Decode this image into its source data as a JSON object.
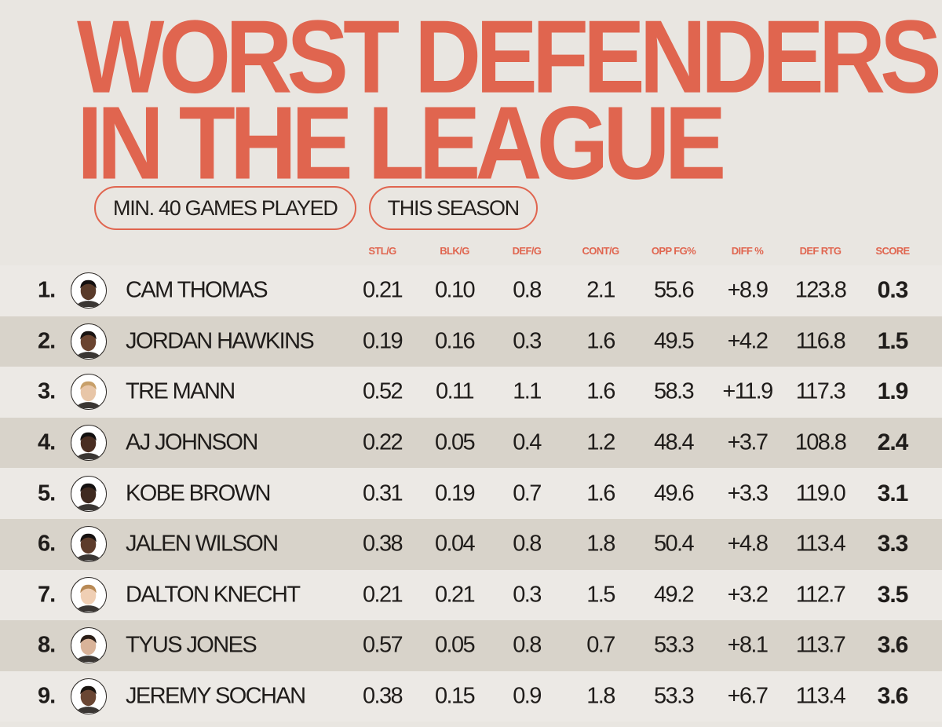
{
  "title": {
    "line1": "WORST DEFENDERS",
    "line2": "IN THE LEAGUE"
  },
  "filters": [
    "MIN. 40 GAMES PLAYED",
    "THIS SEASON"
  ],
  "colors": {
    "accent": "#e0654f",
    "background": "#e9e6e1",
    "row_shade": "#d8d3ca",
    "row_light": "#ece9e5",
    "text": "#1f1c1a"
  },
  "columns": [
    "STL/G",
    "BLK/G",
    "DEF/G",
    "CONT/G",
    "OPP FG%",
    "DIFF %",
    "DEF RTG",
    "SCORE"
  ],
  "rows": [
    {
      "rank": "1.",
      "avatar": "player-headshot-icon",
      "name": "CAM THOMAS",
      "values": [
        "0.21",
        "0.10",
        "0.8",
        "2.1",
        "55.6",
        "+8.9",
        "123.8",
        "0.3"
      ]
    },
    {
      "rank": "2.",
      "avatar": "player-headshot-icon",
      "name": "JORDAN HAWKINS",
      "values": [
        "0.19",
        "0.16",
        "0.3",
        "1.6",
        "49.5",
        "+4.2",
        "116.8",
        "1.5"
      ]
    },
    {
      "rank": "3.",
      "avatar": "player-headshot-icon",
      "name": "TRE MANN",
      "values": [
        "0.52",
        "0.11",
        "1.1",
        "1.6",
        "58.3",
        "+11.9",
        "117.3",
        "1.9"
      ]
    },
    {
      "rank": "4.",
      "avatar": "player-headshot-icon",
      "name": "AJ JOHNSON",
      "values": [
        "0.22",
        "0.05",
        "0.4",
        "1.2",
        "48.4",
        "+3.7",
        "108.8",
        "2.4"
      ]
    },
    {
      "rank": "5.",
      "avatar": "player-headshot-icon",
      "name": "KOBE BROWN",
      "values": [
        "0.31",
        "0.19",
        "0.7",
        "1.6",
        "49.6",
        "+3.3",
        "119.0",
        "3.1"
      ]
    },
    {
      "rank": "6.",
      "avatar": "player-headshot-icon",
      "name": "JALEN WILSON",
      "values": [
        "0.38",
        "0.04",
        "0.8",
        "1.8",
        "50.4",
        "+4.8",
        "113.4",
        "3.3"
      ]
    },
    {
      "rank": "7.",
      "avatar": "player-headshot-icon",
      "name": "DALTON KNECHT",
      "values": [
        "0.21",
        "0.21",
        "0.3",
        "1.5",
        "49.2",
        "+3.2",
        "112.7",
        "3.5"
      ]
    },
    {
      "rank": "8.",
      "avatar": "player-headshot-icon",
      "name": "TYUS JONES",
      "values": [
        "0.57",
        "0.05",
        "0.8",
        "0.7",
        "53.3",
        "+8.1",
        "113.7",
        "3.6"
      ]
    },
    {
      "rank": "9.",
      "avatar": "player-headshot-icon",
      "name": "JEREMY SOCHAN",
      "values": [
        "0.38",
        "0.15",
        "0.9",
        "1.8",
        "53.3",
        "+6.7",
        "113.4",
        "3.6"
      ]
    }
  ]
}
